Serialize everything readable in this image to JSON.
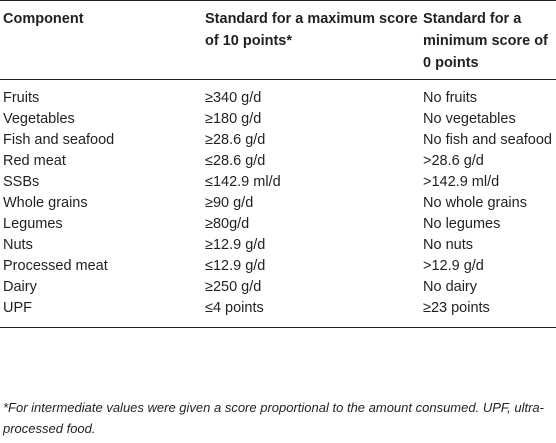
{
  "table": {
    "headers": [
      "Component",
      "Standard for a maximum score of 10 points*",
      "Standard for a minimum score of 0 points"
    ],
    "rows": [
      {
        "component": "Fruits",
        "max": "≥340 g/d",
        "min": "No fruits"
      },
      {
        "component": "Vegetables",
        "max": "≥180 g/d",
        "min": "No vegetables"
      },
      {
        "component": "Fish and seafood",
        "max": "≥28.6 g/d",
        "min": "No fish and seafood"
      },
      {
        "component": "Red meat",
        "max": "≤28.6 g/d",
        "min": ">28.6 g/d"
      },
      {
        "component": "SSBs",
        "max": "≤142.9 ml/d",
        "min": ">142.9 ml/d"
      },
      {
        "component": "Whole grains",
        "max": "≥90 g/d",
        "min": "No whole grains"
      },
      {
        "component": "Legumes",
        "max": "≥80g/d",
        "min": "No legumes"
      },
      {
        "component": "Nuts",
        "max": "≥12.9 g/d",
        "min": "No nuts"
      },
      {
        "component": "Processed meat",
        "max": "≤12.9 g/d",
        "min": ">12.9 g/d"
      },
      {
        "component": "Dairy",
        "max": "≥250 g/d",
        "min": "No dairy"
      },
      {
        "component": "UPF",
        "max": "≤4 points",
        "min": "≥23 points"
      }
    ]
  },
  "footnote": "*For intermediate values were given a score proportional to the amount consumed. UPF, ultra-processed food."
}
